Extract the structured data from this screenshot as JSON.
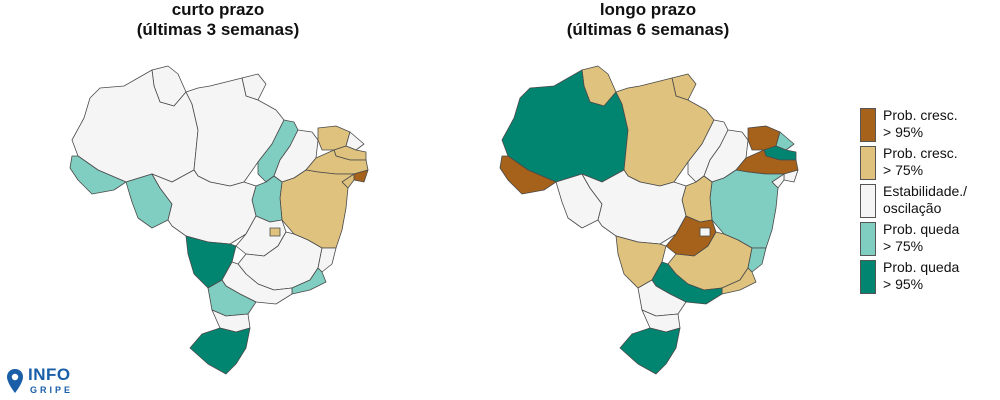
{
  "chart_data": [
    {
      "type": "choropleth",
      "title": "curto prazo",
      "subtitle": "(últimas 3 semanas)",
      "states": {
        "RR": "estavel",
        "AP": "estavel",
        "AM": "estavel",
        "PA": "estavel",
        "AC": "queda75",
        "RO": "queda75",
        "TO": "queda75",
        "MA": "queda75",
        "PI": "estavel",
        "CE": "cresc75",
        "RN": "estavel",
        "PB": "cresc75",
        "PE": "cresc75",
        "AL": "cresc95",
        "SE": "cresc75",
        "BA": "cresc75",
        "MT": "estavel",
        "GO": "estavel",
        "DF": "cresc75",
        "MS": "queda95",
        "MG": "estavel",
        "ES": "estavel",
        "RJ": "queda75",
        "SP": "estavel",
        "PR": "queda75",
        "SC": "estavel",
        "RS": "queda95"
      }
    },
    {
      "type": "choropleth",
      "title": "longo prazo",
      "subtitle": "(últimas 6 semanas)",
      "states": {
        "RR": "cresc75",
        "AP": "cresc75",
        "AM": "queda95",
        "PA": "cresc75",
        "AC": "cresc95",
        "RO": "estavel",
        "TO": "cresc75",
        "MA": "estavel",
        "PI": "estavel",
        "CE": "cresc95",
        "RN": "queda75",
        "PB": "queda95",
        "PE": "cresc95",
        "AL": "estavel",
        "SE": "estavel",
        "BA": "queda75",
        "MT": "estavel",
        "GO": "cresc95",
        "DF": "estavel",
        "MS": "cresc75",
        "MG": "cresc75",
        "ES": "queda75",
        "RJ": "cresc75",
        "SP": "queda95",
        "PR": "estavel",
        "SC": "estavel",
        "RS": "queda95"
      }
    }
  ],
  "legend": [
    {
      "key": "cresc95",
      "line1": "Prob. cresc.",
      "line2": "> 95%",
      "color": "#a6611a"
    },
    {
      "key": "cresc75",
      "line1": "Prob. cresc.",
      "line2": "> 75%",
      "color": "#dfc27d"
    },
    {
      "key": "estavel",
      "line1": "Estabilidade./",
      "line2": "oscilação",
      "color": "#f5f5f5"
    },
    {
      "key": "queda75",
      "line1": "Prob. queda",
      "line2": "> 75%",
      "color": "#80cdc1"
    },
    {
      "key": "queda95",
      "line1": "Prob. queda",
      "line2": "> 95%",
      "color": "#018571"
    }
  ],
  "logo": {
    "top": "INFO",
    "bottom": "GRIPE"
  }
}
